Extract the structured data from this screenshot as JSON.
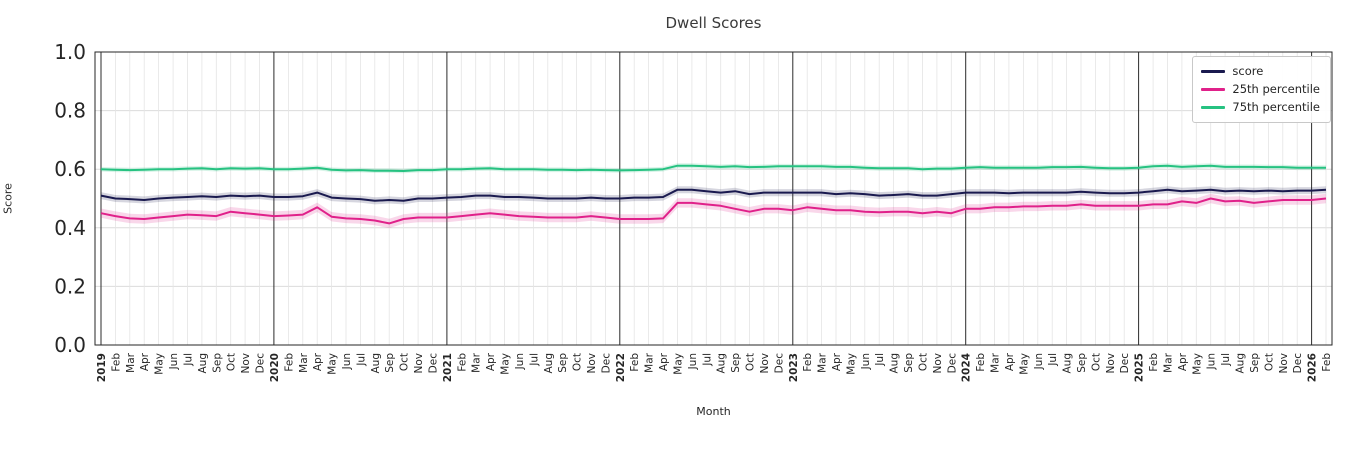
{
  "chart_data": {
    "type": "line",
    "title": "Dwell Scores",
    "xlabel": "Month",
    "ylabel": "Score",
    "ylim": [
      0.0,
      1.0
    ],
    "yticks": [
      0.0,
      0.2,
      0.4,
      0.6,
      0.8,
      1.0
    ],
    "grid": true,
    "legend_position": "upper right",
    "x_labels": [
      "2019",
      "Feb",
      "Mar",
      "Apr",
      "May",
      "Jun",
      "Jul",
      "Aug",
      "Sep",
      "Oct",
      "Nov",
      "Dec",
      "2020",
      "Feb",
      "Mar",
      "Apr",
      "May",
      "Jun",
      "Jul",
      "Aug",
      "Sep",
      "Oct",
      "Nov",
      "Dec",
      "2021",
      "Feb",
      "Mar",
      "Apr",
      "May",
      "Jun",
      "Jul",
      "Aug",
      "Sep",
      "Oct",
      "Nov",
      "Dec",
      "2022",
      "Feb",
      "Mar",
      "Apr",
      "May",
      "Jun",
      "Jul",
      "Aug",
      "Sep",
      "Oct",
      "Nov",
      "Dec",
      "2023",
      "Feb",
      "Mar",
      "Apr",
      "May",
      "Jun",
      "Jul",
      "Aug",
      "Sep",
      "Oct",
      "Nov",
      "Dec",
      "2024",
      "Feb",
      "Mar",
      "Apr",
      "May",
      "Jun",
      "Jul",
      "Aug",
      "Sep",
      "Oct",
      "Nov",
      "Dec",
      "2025",
      "Feb",
      "Mar",
      "Apr",
      "May",
      "Jun",
      "Jul",
      "Aug",
      "Sep",
      "Oct",
      "Nov",
      "Dec",
      "2026",
      "Feb"
    ],
    "series": [
      {
        "name": "score",
        "color": "#1a1a4f",
        "band_halfwidth": 0.012,
        "values": [
          0.51,
          0.5,
          0.498,
          0.495,
          0.5,
          0.503,
          0.505,
          0.508,
          0.505,
          0.51,
          0.508,
          0.51,
          0.505,
          0.505,
          0.508,
          0.52,
          0.503,
          0.5,
          0.498,
          0.492,
          0.495,
          0.492,
          0.5,
          0.5,
          0.503,
          0.505,
          0.51,
          0.51,
          0.505,
          0.505,
          0.503,
          0.5,
          0.5,
          0.5,
          0.503,
          0.5,
          0.5,
          0.503,
          0.503,
          0.505,
          0.53,
          0.53,
          0.525,
          0.52,
          0.525,
          0.515,
          0.52,
          0.52,
          0.52,
          0.52,
          0.52,
          0.515,
          0.518,
          0.515,
          0.51,
          0.512,
          0.515,
          0.51,
          0.51,
          0.515,
          0.52,
          0.52,
          0.52,
          0.518,
          0.52,
          0.52,
          0.52,
          0.52,
          0.523,
          0.52,
          0.518,
          0.518,
          0.52,
          0.525,
          0.53,
          0.525,
          0.527,
          0.53,
          0.525,
          0.527,
          0.525,
          0.527,
          0.525,
          0.527,
          0.527,
          0.53
        ]
      },
      {
        "name": "25th percentile",
        "color": "#e0218a",
        "band_halfwidth": 0.016,
        "values": [
          0.45,
          0.44,
          0.432,
          0.43,
          0.435,
          0.44,
          0.445,
          0.443,
          0.44,
          0.455,
          0.45,
          0.445,
          0.44,
          0.442,
          0.445,
          0.47,
          0.438,
          0.432,
          0.43,
          0.425,
          0.415,
          0.43,
          0.435,
          0.435,
          0.435,
          0.44,
          0.445,
          0.45,
          0.445,
          0.44,
          0.438,
          0.435,
          0.435,
          0.435,
          0.44,
          0.435,
          0.43,
          0.43,
          0.43,
          0.432,
          0.485,
          0.485,
          0.48,
          0.475,
          0.465,
          0.455,
          0.465,
          0.465,
          0.46,
          0.47,
          0.465,
          0.46,
          0.46,
          0.455,
          0.453,
          0.455,
          0.455,
          0.45,
          0.455,
          0.45,
          0.465,
          0.465,
          0.47,
          0.47,
          0.473,
          0.473,
          0.475,
          0.475,
          0.48,
          0.475,
          0.475,
          0.475,
          0.475,
          0.48,
          0.48,
          0.49,
          0.485,
          0.5,
          0.49,
          0.492,
          0.485,
          0.49,
          0.495,
          0.495,
          0.495,
          0.5
        ]
      },
      {
        "name": "75th percentile",
        "color": "#26c281",
        "band_halfwidth": 0.008,
        "values": [
          0.6,
          0.598,
          0.597,
          0.598,
          0.6,
          0.6,
          0.602,
          0.603,
          0.6,
          0.603,
          0.602,
          0.603,
          0.6,
          0.6,
          0.602,
          0.605,
          0.598,
          0.596,
          0.597,
          0.595,
          0.595,
          0.594,
          0.597,
          0.597,
          0.6,
          0.6,
          0.602,
          0.603,
          0.6,
          0.6,
          0.6,
          0.598,
          0.598,
          0.597,
          0.598,
          0.597,
          0.596,
          0.597,
          0.598,
          0.6,
          0.612,
          0.612,
          0.61,
          0.608,
          0.61,
          0.607,
          0.608,
          0.61,
          0.61,
          0.61,
          0.61,
          0.608,
          0.608,
          0.605,
          0.603,
          0.603,
          0.603,
          0.6,
          0.602,
          0.602,
          0.605,
          0.607,
          0.605,
          0.605,
          0.605,
          0.605,
          0.607,
          0.607,
          0.608,
          0.605,
          0.603,
          0.603,
          0.605,
          0.61,
          0.612,
          0.608,
          0.61,
          0.612,
          0.608,
          0.608,
          0.608,
          0.607,
          0.607,
          0.605,
          0.605,
          0.605
        ]
      }
    ]
  }
}
